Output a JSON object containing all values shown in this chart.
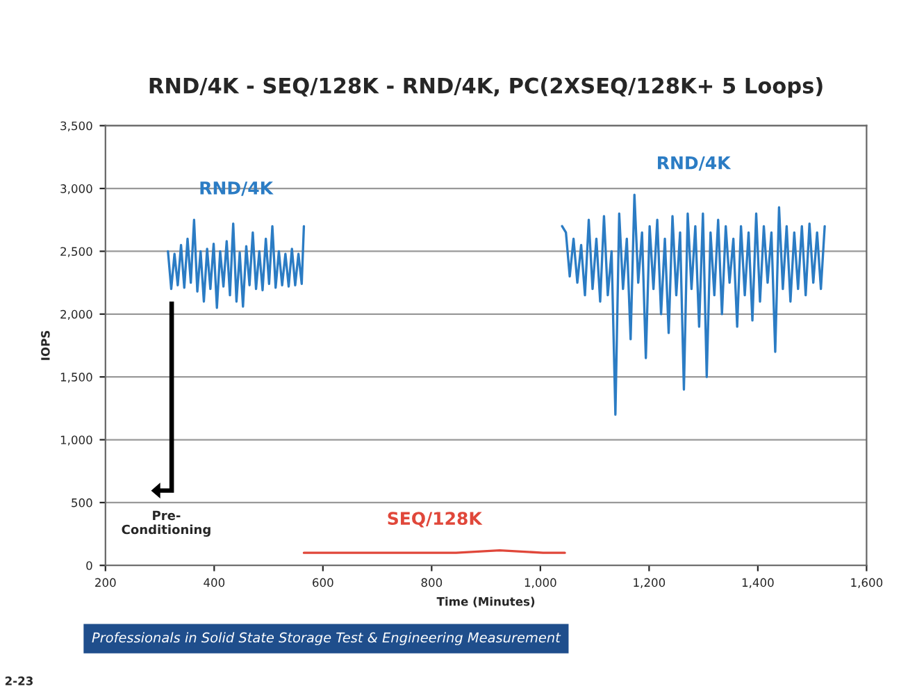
{
  "chart_data": {
    "type": "line",
    "title": "RND/4K - SEQ/128K - RND/4K, PC(2XSEQ/128K+ 5 Loops)",
    "xlabel": "Time (Minutes)",
    "ylabel": "IOPS",
    "series": [
      {
        "name": "RND/4K",
        "color": "#2b7cc4",
        "x": [
          315,
          321,
          327,
          333,
          339,
          345,
          351,
          357,
          363,
          369,
          375,
          381,
          387,
          393,
          399,
          405,
          411,
          417,
          423,
          429,
          435,
          441,
          447,
          453,
          459,
          465,
          471,
          477,
          483,
          489,
          495,
          501,
          507,
          513,
          519,
          525,
          531,
          537,
          543,
          549,
          555,
          561,
          565
        ],
        "values": [
          2500,
          2200,
          2480,
          2230,
          2550,
          2210,
          2600,
          2250,
          2750,
          2180,
          2500,
          2100,
          2520,
          2200,
          2560,
          2050,
          2500,
          2220,
          2580,
          2150,
          2720,
          2100,
          2490,
          2060,
          2540,
          2230,
          2650,
          2200,
          2500,
          2190,
          2600,
          2240,
          2700,
          2210,
          2500,
          2230,
          2480,
          2220,
          2520,
          2230,
          2480,
          2240,
          2700
        ]
      },
      {
        "name": "SEQ/128K",
        "color": "#e0473a",
        "x": [
          565,
          605,
          645,
          685,
          725,
          765,
          805,
          845,
          885,
          925,
          965,
          1005,
          1045
        ],
        "values": [
          100,
          100,
          100,
          100,
          100,
          100,
          100,
          100,
          110,
          120,
          110,
          100,
          100
        ]
      },
      {
        "name": "RND/4K",
        "color": "#2b7cc4",
        "x": [
          1040,
          1047,
          1054,
          1061,
          1068,
          1075,
          1082,
          1089,
          1096,
          1103,
          1110,
          1117,
          1124,
          1131,
          1138,
          1145,
          1152,
          1159,
          1166,
          1173,
          1180,
          1187,
          1194,
          1201,
          1208,
          1215,
          1222,
          1229,
          1236,
          1243,
          1250,
          1257,
          1264,
          1271,
          1278,
          1285,
          1292,
          1299,
          1306,
          1313,
          1320,
          1327,
          1334,
          1341,
          1348,
          1355,
          1362,
          1369,
          1376,
          1383,
          1390,
          1397,
          1404,
          1411,
          1418,
          1425,
          1432,
          1439,
          1446,
          1453,
          1460,
          1467,
          1474,
          1481,
          1488,
          1495,
          1502,
          1509,
          1516,
          1523
        ],
        "values": [
          2700,
          2650,
          2300,
          2600,
          2250,
          2550,
          2150,
          2750,
          2200,
          2600,
          2100,
          2780,
          2150,
          2500,
          1200,
          2800,
          2200,
          2600,
          1800,
          2950,
          2250,
          2650,
          1650,
          2700,
          2200,
          2750,
          2000,
          2600,
          1850,
          2780,
          2150,
          2650,
          1400,
          2800,
          2200,
          2700,
          1900,
          2800,
          1500,
          2650,
          2150,
          2750,
          2000,
          2700,
          2250,
          2600,
          1900,
          2700,
          2150,
          2650,
          1950,
          2800,
          2100,
          2700,
          2250,
          2650,
          1700,
          2850,
          2200,
          2700,
          2100,
          2650,
          2200,
          2700,
          2150,
          2720,
          2250,
          2650,
          2200,
          2700
        ]
      }
    ],
    "xlim": [
      200,
      1600
    ],
    "xticks": [
      200,
      400,
      600,
      800,
      {
        "value": 1000,
        "label": "1,000"
      },
      {
        "value": 1200,
        "label": "1,200"
      },
      {
        "value": 1400,
        "label": "1,400"
      },
      {
        "value": 1600,
        "label": "1,600"
      }
    ],
    "ylim": [
      0,
      3500
    ],
    "yticks": [
      0,
      500,
      {
        "value": 1000,
        "label": "1,000"
      },
      {
        "value": 1500,
        "label": "1,500"
      },
      {
        "value": 2000,
        "label": "2,000"
      },
      {
        "value": 2500,
        "label": "2,500"
      },
      {
        "value": 3000,
        "label": "3,000"
      },
      {
        "value": 3500,
        "label": "3,500"
      }
    ],
    "grid": "y",
    "line_style": "solid",
    "marker": "none",
    "annotations": [
      "Pre-\nConditioning",
      "Professionals in Solid State Storage Test & Engineering Measurement",
      "2-23"
    ]
  }
}
